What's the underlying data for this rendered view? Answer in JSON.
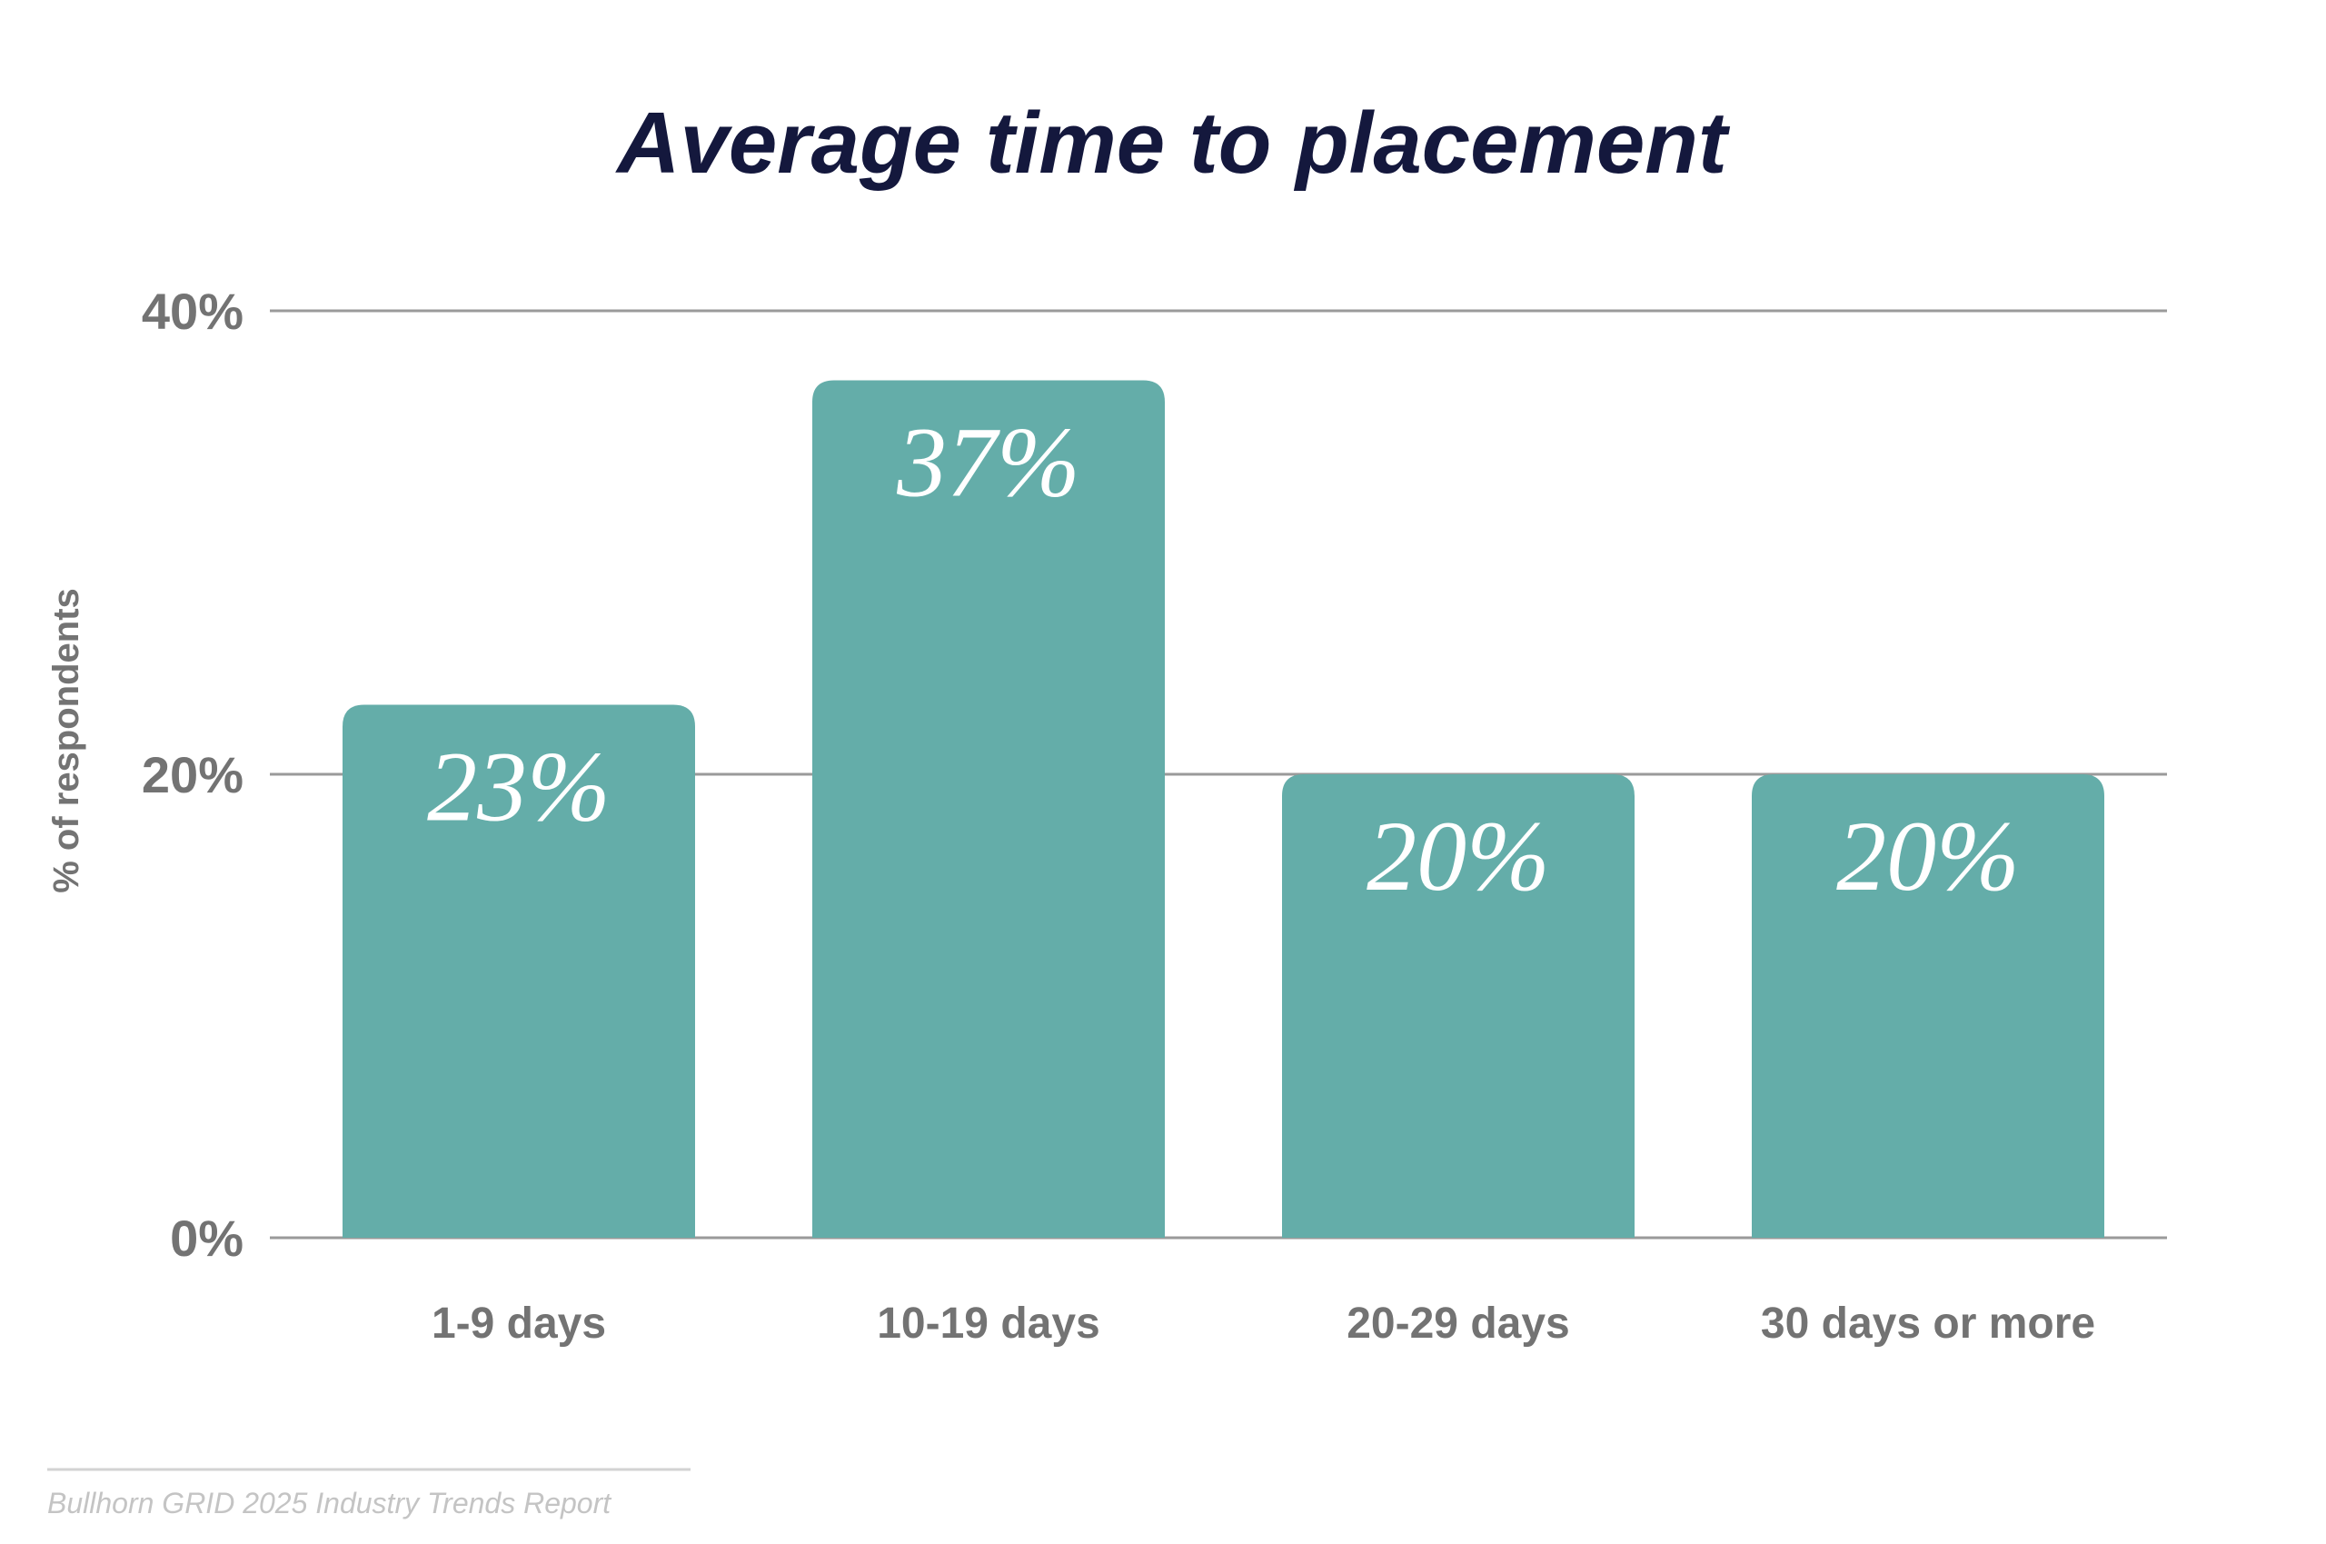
{
  "chart_data": {
    "type": "bar",
    "title": "Average time to placement",
    "ylabel": "% of respondents",
    "xlabel": "",
    "categories": [
      "1-9 days",
      "10-19 days",
      "20-29 days",
      "30 days or more"
    ],
    "values": [
      23,
      37,
      20,
      20
    ],
    "data_labels": [
      "23%",
      "37%",
      "20%",
      "20%"
    ],
    "ylim": [
      0,
      40
    ],
    "yticks": [
      0,
      20,
      40
    ],
    "ytick_labels": [
      "0%",
      "20%",
      "40%"
    ],
    "grid": true,
    "legend": "none",
    "bar_color": "#64ada9",
    "title_color": "#14183d",
    "label_color": "#737373"
  },
  "footer": {
    "source": "Bullhorn GRID 2025 Industry Trends Report"
  }
}
